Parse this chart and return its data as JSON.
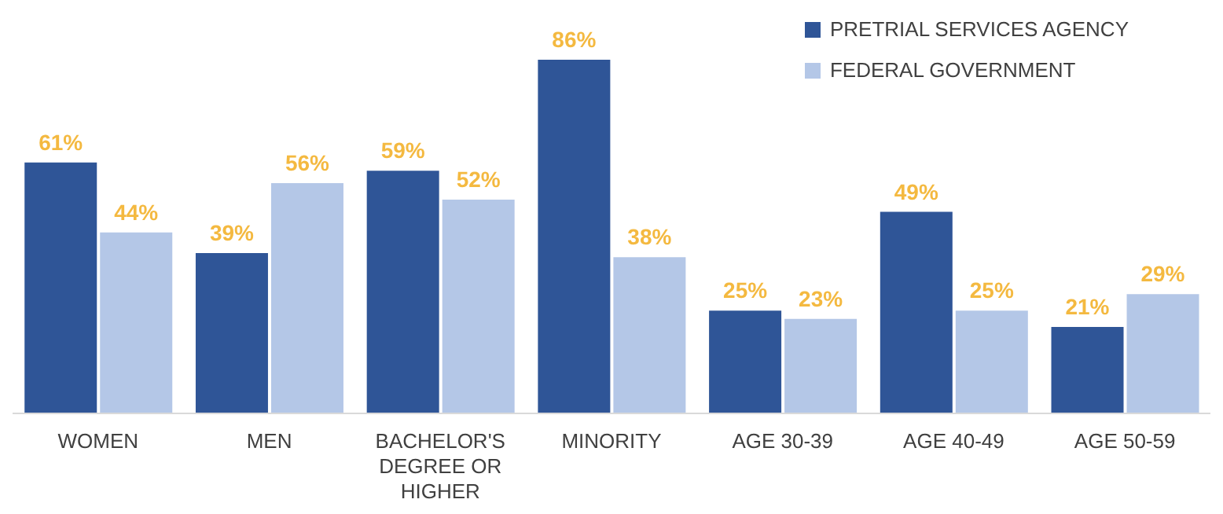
{
  "chart_data": {
    "type": "bar",
    "categories": [
      "WOMEN",
      "MEN",
      "BACHELOR'S DEGREE OR HIGHER",
      "MINORITY",
      "AGE 30-39",
      "AGE 40-49",
      "AGE 50-59"
    ],
    "series": [
      {
        "name": "PRETRIAL SERVICES AGENCY",
        "color": "#2f5597",
        "values": [
          61,
          39,
          59,
          86,
          25,
          49,
          21
        ],
        "value_labels": [
          "61%",
          "39%",
          "59%",
          "86%",
          "25%",
          "49%",
          "21%"
        ]
      },
      {
        "name": "FEDERAL GOVERNMENT",
        "color": "#b4c7e7",
        "values": [
          44,
          56,
          52,
          38,
          23,
          25,
          29
        ],
        "value_labels": [
          "44%",
          "56%",
          "52%",
          "38%",
          "23%",
          "25%",
          "29%"
        ]
      }
    ],
    "legend": "top right",
    "grid": false
  }
}
